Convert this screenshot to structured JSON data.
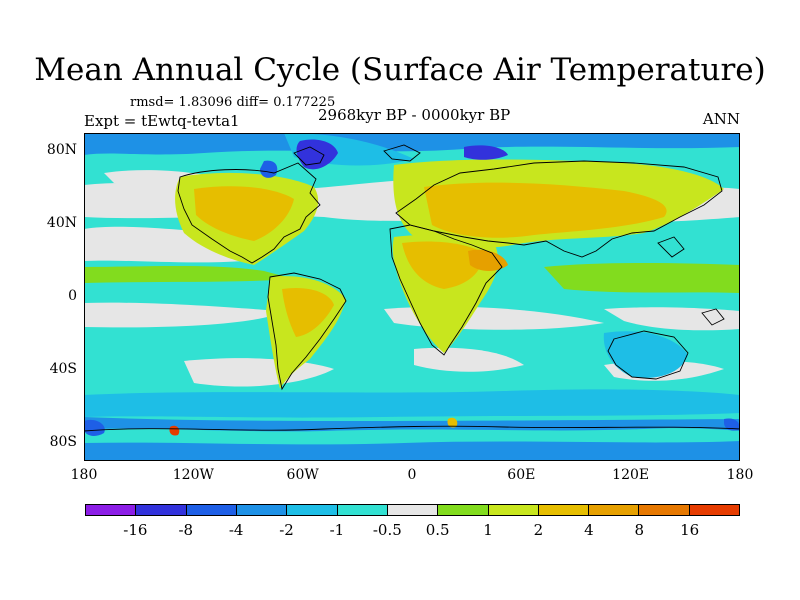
{
  "title": "Mean Annual Cycle (Surface Air Temperature)",
  "stats": "rmsd= 1.83096 diff= 0.177225",
  "experiment": "Expt = tEwtq-tevta1",
  "period": "2968kyr BP - 0000kyr BP",
  "season": "ANN",
  "map": {
    "lat_ticks": [
      "80N",
      "40N",
      "0",
      "40S",
      "80S"
    ],
    "lat_values": [
      80,
      40,
      0,
      -40,
      -80
    ],
    "lon_ticks": [
      "180",
      "120W",
      "60W",
      "0",
      "60E",
      "120E",
      "180"
    ],
    "lon_values": [
      -180,
      -120,
      -60,
      0,
      60,
      120,
      180
    ],
    "lon_range": [
      -180,
      180
    ],
    "lat_range": [
      -90,
      90
    ]
  },
  "colorbar": {
    "labels": [
      "-16",
      "-8",
      "-4",
      "-2",
      "-1",
      "-0.5",
      "0.5",
      "1",
      "2",
      "4",
      "8",
      "16"
    ],
    "colors": [
      "#8c1ee6",
      "#3232dc",
      "#1e5fe6",
      "#1e91e6",
      "#1ebee6",
      "#32e1d2",
      "#e6e6e6",
      "#82dc1e",
      "#c8e61e",
      "#e6be00",
      "#e6a000",
      "#e67800",
      "#e63c00"
    ],
    "ocean_fill": "#e6e6e6"
  }
}
